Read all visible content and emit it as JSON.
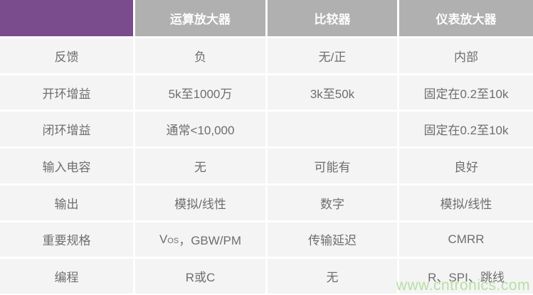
{
  "table": {
    "header": {
      "corner": "",
      "columns": [
        "运算放大器",
        "比较器",
        "仪表放大器"
      ]
    },
    "rows": [
      {
        "label": "反馈",
        "cells": [
          "负",
          "无/正",
          "内部"
        ]
      },
      {
        "label": "开环增益",
        "cells": [
          "5k至1000万",
          "3k至50k",
          "固定在0.2至10k"
        ]
      },
      {
        "label": "闭环增益",
        "cells": [
          "通常<10,000",
          "",
          "固定在0.2至10k"
        ]
      },
      {
        "label": "输入电容",
        "cells": [
          "无",
          "可能有",
          "良好"
        ]
      },
      {
        "label": "输出",
        "cells": [
          "模拟/线性",
          "数字",
          "模拟/线性"
        ]
      },
      {
        "label": "重要规格",
        "cells": [
          "",
          "传输延迟",
          "CMRR"
        ]
      },
      {
        "label": "编程",
        "cells": [
          "R或C",
          "无",
          "R、SPI、跳线"
        ]
      }
    ],
    "vos": {
      "base": "V",
      "sub": "OS",
      "rest": "，GBW/PM"
    }
  },
  "watermark": {
    "text": "www.cntronics.com"
  },
  "colors": {
    "corner_purple": "#7a4b8d",
    "header_gray": "#b0b0b0",
    "cell_bg": "#f4f4f4",
    "cell_text": "#6e6e6e",
    "header_text": "#fdfdfd",
    "watermark_green": "#b7dfa4"
  }
}
